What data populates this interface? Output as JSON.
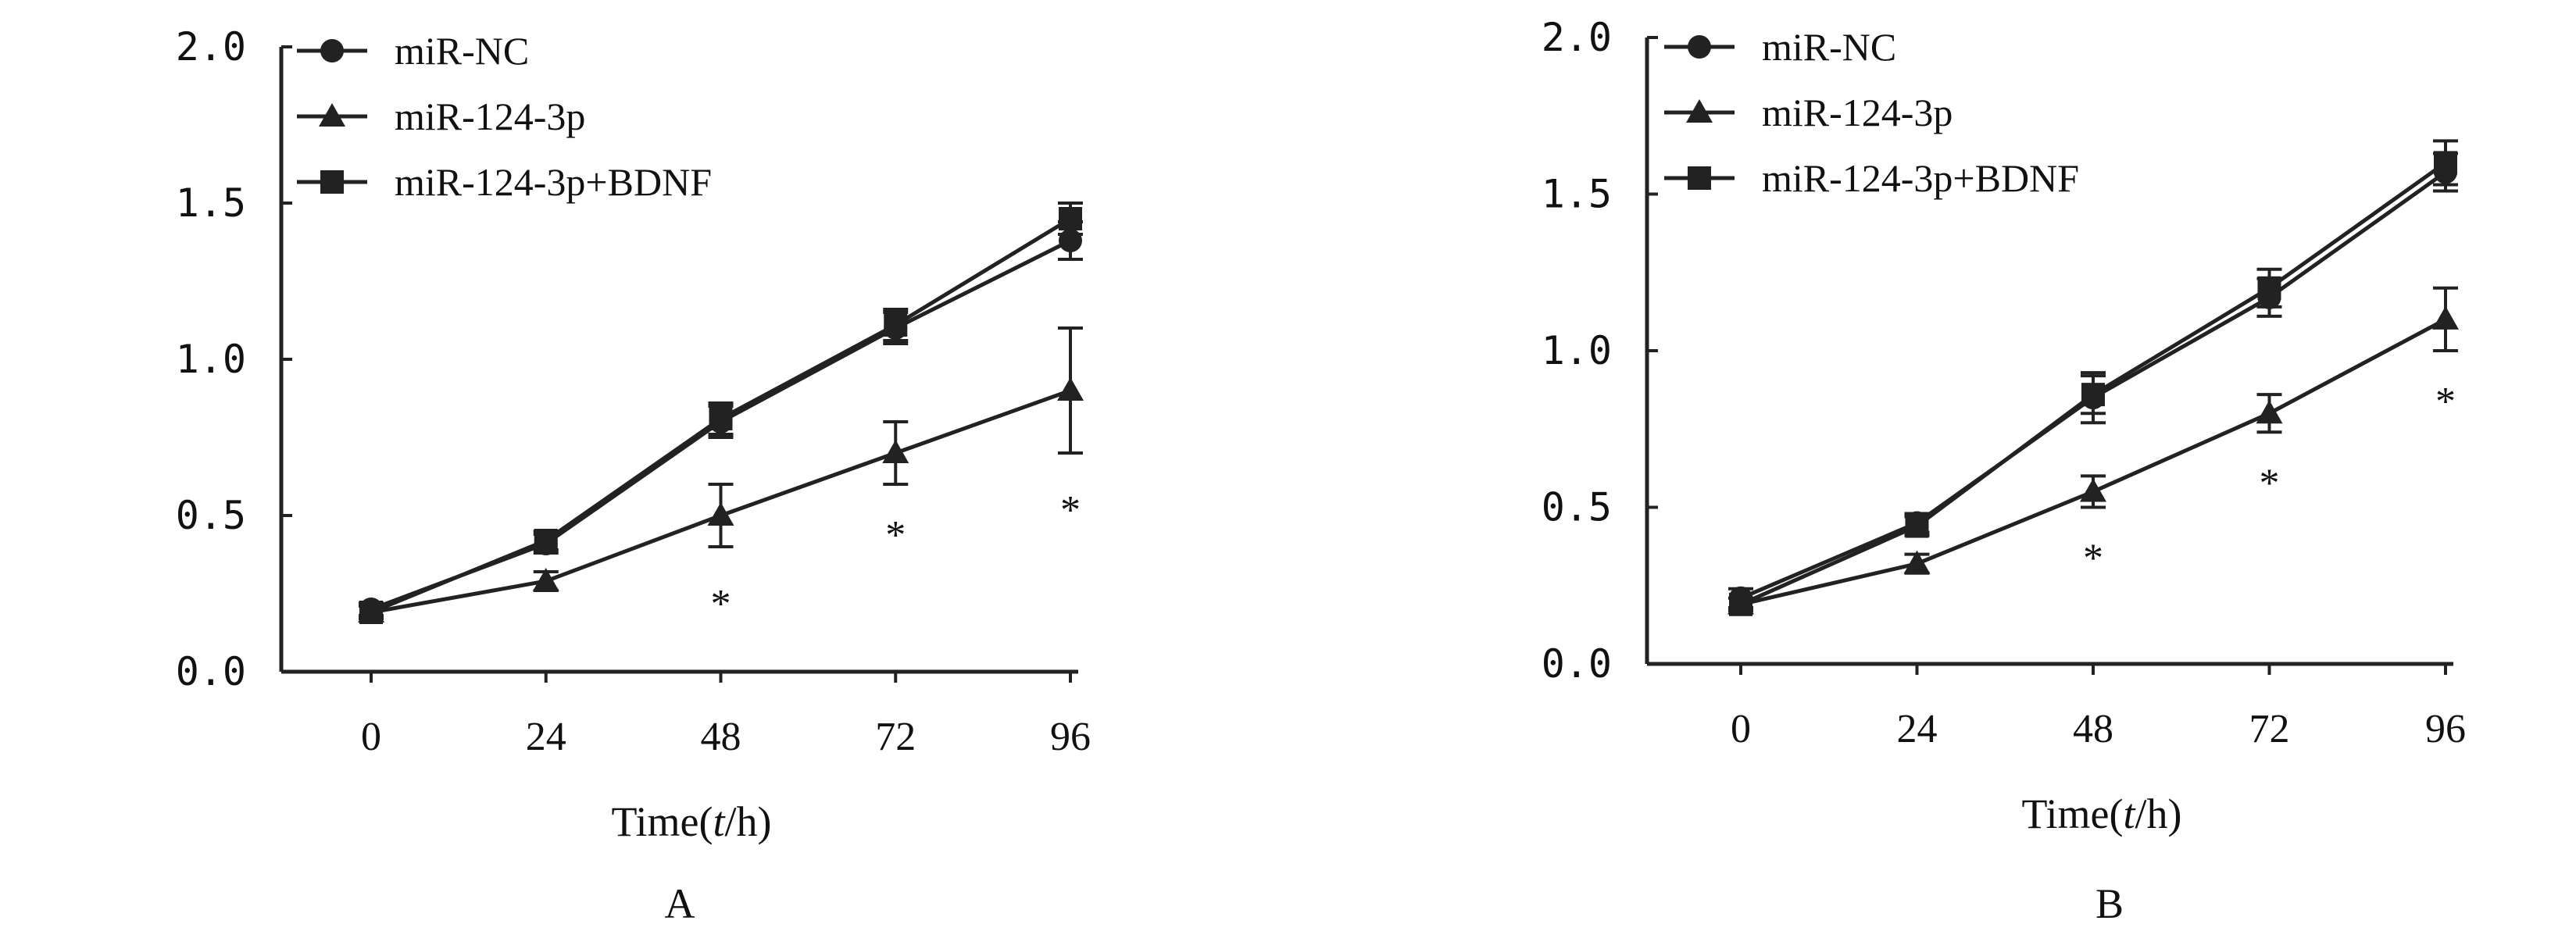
{
  "colors": {
    "ink": "#222222",
    "background": "#ffffff"
  },
  "chart_data": [
    {
      "type": "line",
      "panel_label": "A",
      "xlabel_prefix": "Time(",
      "xlabel_var": "t",
      "xlabel_suffix": "/h)",
      "ylabel": "",
      "x": [
        0,
        24,
        48,
        72,
        96
      ],
      "xtick_labels": [
        "0",
        "24",
        "48",
        "72",
        "96"
      ],
      "ytick_labels": [
        "0.0",
        "0.5",
        "1.0",
        "1.5",
        "2.0"
      ],
      "yticks": [
        0,
        0.5,
        1.0,
        1.5,
        2.0
      ],
      "ylim": [
        0,
        2.0
      ],
      "legend_position": "top-left",
      "series": [
        {
          "name": "miR-NC",
          "marker": "circle",
          "values": [
            0.2,
            0.41,
            0.8,
            1.1,
            1.38
          ],
          "errors": [
            0.02,
            0.03,
            0.05,
            0.05,
            0.06
          ]
        },
        {
          "name": "miR-124-3p",
          "marker": "triangle",
          "values": [
            0.19,
            0.29,
            0.5,
            0.7,
            0.9
          ],
          "errors": [
            0.02,
            0.03,
            0.1,
            0.1,
            0.2
          ]
        },
        {
          "name": "miR-124-3p+BDNF",
          "marker": "square",
          "values": [
            0.19,
            0.42,
            0.81,
            1.11,
            1.45
          ],
          "errors": [
            0.02,
            0.03,
            0.05,
            0.05,
            0.05
          ]
        }
      ],
      "significance": [
        {
          "x": 48,
          "y": 0.25,
          "label": "*"
        },
        {
          "x": 72,
          "y": 0.47,
          "label": "*"
        },
        {
          "x": 96,
          "y": 0.55,
          "label": "*"
        }
      ]
    },
    {
      "type": "line",
      "panel_label": "B",
      "xlabel_prefix": "Time(",
      "xlabel_var": "t",
      "xlabel_suffix": "/h)",
      "ylabel": "",
      "x": [
        0,
        24,
        48,
        72,
        96
      ],
      "xtick_labels": [
        "0",
        "24",
        "48",
        "72",
        "96"
      ],
      "ytick_labels": [
        "0.0",
        "0.5",
        "1.0",
        "1.5",
        "2.0"
      ],
      "yticks": [
        0,
        0.5,
        1.0,
        1.5,
        2.0
      ],
      "ylim": [
        0,
        2.0
      ],
      "legend_position": "top-left",
      "series": [
        {
          "name": "miR-NC",
          "marker": "circle",
          "values": [
            0.21,
            0.45,
            0.85,
            1.17,
            1.57
          ],
          "errors": [
            0.03,
            0.03,
            0.08,
            0.06,
            0.06
          ]
        },
        {
          "name": "miR-124-3p",
          "marker": "triangle",
          "values": [
            0.19,
            0.32,
            0.55,
            0.8,
            1.1
          ],
          "errors": [
            0.02,
            0.03,
            0.05,
            0.06,
            0.1
          ]
        },
        {
          "name": "miR-124-3p+BDNF",
          "marker": "square",
          "values": [
            0.19,
            0.44,
            0.86,
            1.2,
            1.6
          ],
          "errors": [
            0.02,
            0.03,
            0.06,
            0.06,
            0.07
          ]
        }
      ],
      "significance": [
        {
          "x": 48,
          "y": 0.37,
          "label": "*"
        },
        {
          "x": 72,
          "y": 0.61,
          "label": "*"
        },
        {
          "x": 96,
          "y": 0.87,
          "label": "*"
        }
      ]
    }
  ]
}
